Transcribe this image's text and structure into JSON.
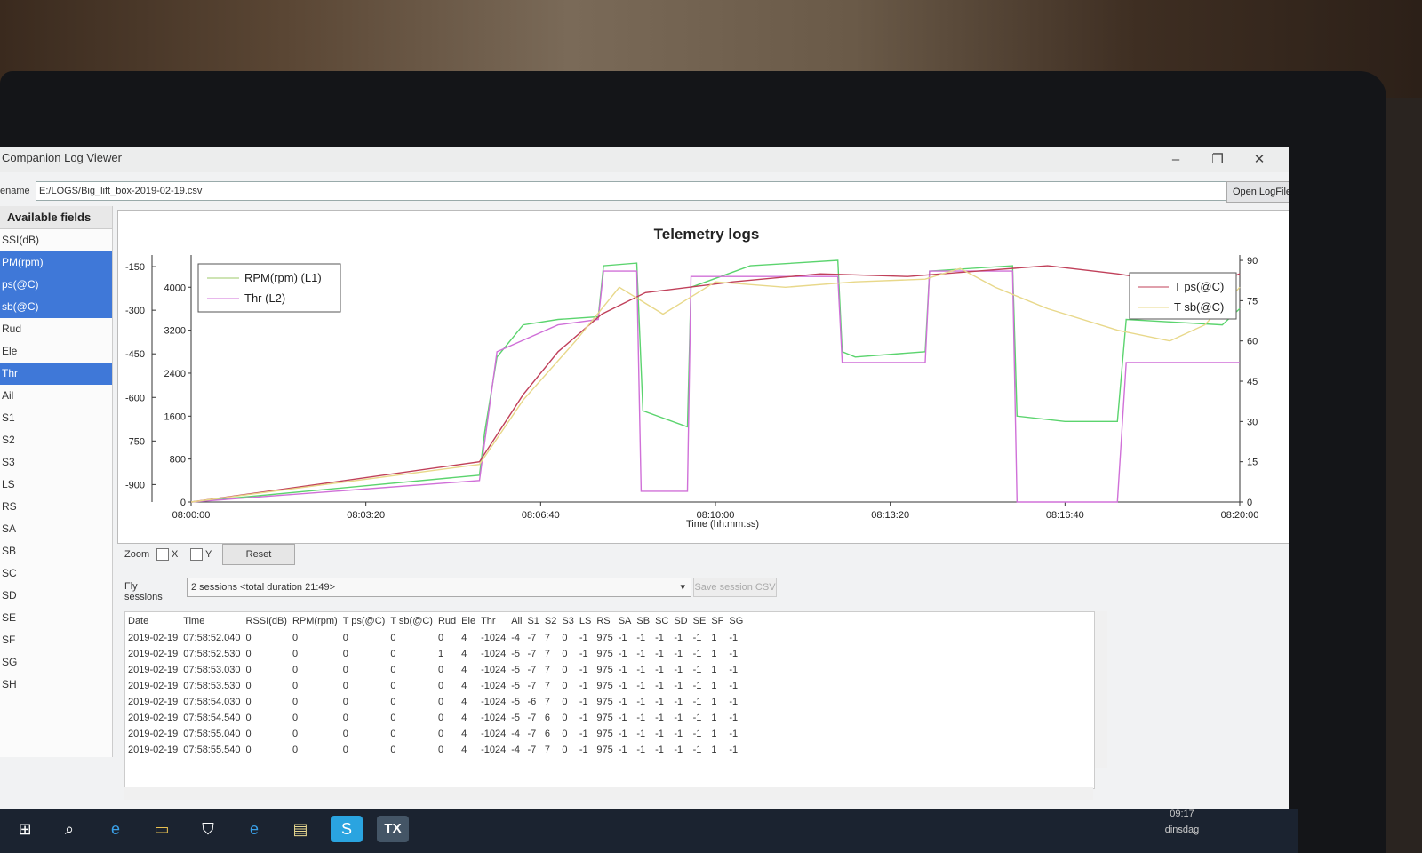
{
  "window": {
    "title": "Companion Log Viewer",
    "controls": [
      "–",
      "❐",
      "✕"
    ]
  },
  "file": {
    "label": "ename",
    "path": "E:/LOGS/Big_lift_box-2019-02-19.csv",
    "open_button": "Open LogFile"
  },
  "fields": {
    "header": "Available fields",
    "items": [
      {
        "label": "SSI(dB)",
        "selected": false
      },
      {
        "label": "PM(rpm)",
        "selected": true
      },
      {
        "label": "ps(@C)",
        "selected": true
      },
      {
        "label": "sb(@C)",
        "selected": true
      },
      {
        "label": "Rud",
        "selected": false
      },
      {
        "label": "Ele",
        "selected": false
      },
      {
        "label": "Thr",
        "selected": true
      },
      {
        "label": "Ail",
        "selected": false
      },
      {
        "label": "S1",
        "selected": false
      },
      {
        "label": "S2",
        "selected": false
      },
      {
        "label": "S3",
        "selected": false
      },
      {
        "label": "LS",
        "selected": false
      },
      {
        "label": "RS",
        "selected": false
      },
      {
        "label": "SA",
        "selected": false
      },
      {
        "label": "SB",
        "selected": false
      },
      {
        "label": "SC",
        "selected": false
      },
      {
        "label": "SD",
        "selected": false
      },
      {
        "label": "SE",
        "selected": false
      },
      {
        "label": "SF",
        "selected": false
      },
      {
        "label": "SG",
        "selected": false
      },
      {
        "label": "SH",
        "selected": false
      }
    ]
  },
  "chart_data": {
    "type": "line",
    "title": "Telemetry logs",
    "xlabel": "Time (hh:mm:ss)",
    "x_ticks": [
      "08:00:00",
      "08:03:20",
      "08:06:40",
      "08:10:00",
      "08:13:20",
      "08:16:40",
      "08:20:00"
    ],
    "xlim": [
      0,
      1200
    ],
    "y_left_outer": {
      "ticks": [
        -150,
        -300,
        -450,
        -600,
        -750,
        -900
      ],
      "range": [
        -960,
        -110
      ]
    },
    "y_left_inner": {
      "ticks": [
        0,
        800,
        1600,
        2400,
        3200,
        4000
      ],
      "range": [
        0,
        4600
      ]
    },
    "y_right": {
      "ticks": [
        0,
        15,
        30,
        45,
        60,
        75,
        90
      ],
      "range": [
        0,
        92
      ]
    },
    "legend_left": [
      "RPM(rpm) (L1)",
      "Thr (L2)"
    ],
    "legend_right": [
      "T ps(@C)",
      "T sb(@C)"
    ],
    "colors": {
      "rpm": "#9ec86a",
      "thr": "#d070d8",
      "tps": "#c0405a",
      "tsb": "#e8d88a",
      "green_trace": "#5bd46e",
      "cyan": "#58c8e8"
    },
    "series": [
      {
        "name": "RPM(rpm) (L1)",
        "color": "#5bd46e",
        "points": [
          [
            0,
            0
          ],
          [
            330,
            500
          ],
          [
            336,
            1300
          ],
          [
            350,
            2700
          ],
          [
            380,
            3300
          ],
          [
            420,
            3400
          ],
          [
            466,
            3450
          ],
          [
            472,
            4400
          ],
          [
            510,
            4450
          ],
          [
            517,
            1700
          ],
          [
            568,
            1400
          ],
          [
            572,
            4000
          ],
          [
            640,
            4400
          ],
          [
            740,
            4500
          ],
          [
            745,
            2800
          ],
          [
            760,
            2700
          ],
          [
            840,
            2800
          ],
          [
            845,
            4300
          ],
          [
            940,
            4400
          ],
          [
            945,
            1600
          ],
          [
            1000,
            1500
          ],
          [
            1060,
            1500
          ],
          [
            1070,
            3400
          ],
          [
            1180,
            3300
          ],
          [
            1200,
            3600
          ]
        ]
      },
      {
        "name": "Thr (L2)",
        "color": "#d070d8",
        "points": [
          [
            0,
            0
          ],
          [
            330,
            400
          ],
          [
            350,
            2800
          ],
          [
            420,
            3300
          ],
          [
            466,
            3400
          ],
          [
            472,
            4300
          ],
          [
            510,
            4300
          ],
          [
            515,
            200
          ],
          [
            568,
            200
          ],
          [
            572,
            4200
          ],
          [
            740,
            4200
          ],
          [
            745,
            2600
          ],
          [
            840,
            2600
          ],
          [
            845,
            4300
          ],
          [
            940,
            4300
          ],
          [
            945,
            0
          ],
          [
            1060,
            0
          ],
          [
            1070,
            2600
          ],
          [
            1200,
            2600
          ]
        ]
      },
      {
        "name": "T ps(@C)",
        "color": "#c0405a",
        "points": [
          [
            0,
            0
          ],
          [
            330,
            15
          ],
          [
            380,
            40
          ],
          [
            420,
            56
          ],
          [
            470,
            70
          ],
          [
            520,
            78
          ],
          [
            620,
            82
          ],
          [
            720,
            85
          ],
          [
            820,
            84
          ],
          [
            900,
            86
          ],
          [
            980,
            88
          ],
          [
            1060,
            85
          ],
          [
            1120,
            82
          ],
          [
            1160,
            80
          ],
          [
            1200,
            85
          ]
        ]
      },
      {
        "name": "T sb(@C)",
        "color": "#e8d88a",
        "points": [
          [
            0,
            0
          ],
          [
            330,
            14
          ],
          [
            380,
            38
          ],
          [
            440,
            60
          ],
          [
            490,
            80
          ],
          [
            540,
            70
          ],
          [
            600,
            82
          ],
          [
            680,
            80
          ],
          [
            760,
            82
          ],
          [
            840,
            83
          ],
          [
            880,
            87
          ],
          [
            920,
            80
          ],
          [
            980,
            72
          ],
          [
            1060,
            64
          ],
          [
            1120,
            60
          ],
          [
            1160,
            66
          ],
          [
            1200,
            80
          ]
        ]
      }
    ]
  },
  "zoom": {
    "label": "Zoom",
    "x_label": "X",
    "y_label": "Y",
    "reset": "Reset"
  },
  "sessions": {
    "label": "Fly sessions",
    "selected": "2 sessions <total duration 21:49>",
    "save_button": "Save session CSV"
  },
  "table": {
    "columns": [
      "Date",
      "Time",
      "RSSI(dB)",
      "RPM(rpm)",
      "T ps(@C)",
      "T sb(@C)",
      "Rud",
      "Ele",
      "Thr",
      "Ail",
      "S1",
      "S2",
      "S3",
      "LS",
      "RS",
      "SA",
      "SB",
      "SC",
      "SD",
      "SE",
      "SF",
      "SG"
    ],
    "rows": [
      [
        "2019-02-19",
        "07:58:52.040",
        "0",
        "0",
        "0",
        "0",
        "0",
        "4",
        "-1024",
        "-4",
        "-7",
        "7",
        "0",
        "-1",
        "975",
        "-1",
        "-1",
        "-1",
        "-1",
        "-1",
        "1",
        "-1"
      ],
      [
        "2019-02-19",
        "07:58:52.530",
        "0",
        "0",
        "0",
        "0",
        "1",
        "4",
        "-1024",
        "-5",
        "-7",
        "7",
        "0",
        "-1",
        "975",
        "-1",
        "-1",
        "-1",
        "-1",
        "-1",
        "1",
        "-1"
      ],
      [
        "2019-02-19",
        "07:58:53.030",
        "0",
        "0",
        "0",
        "0",
        "0",
        "4",
        "-1024",
        "-5",
        "-7",
        "7",
        "0",
        "-1",
        "975",
        "-1",
        "-1",
        "-1",
        "-1",
        "-1",
        "1",
        "-1"
      ],
      [
        "2019-02-19",
        "07:58:53.530",
        "0",
        "0",
        "0",
        "0",
        "0",
        "4",
        "-1024",
        "-5",
        "-7",
        "7",
        "0",
        "-1",
        "975",
        "-1",
        "-1",
        "-1",
        "-1",
        "-1",
        "1",
        "-1"
      ],
      [
        "2019-02-19",
        "07:58:54.030",
        "0",
        "0",
        "0",
        "0",
        "0",
        "4",
        "-1024",
        "-5",
        "-6",
        "7",
        "0",
        "-1",
        "975",
        "-1",
        "-1",
        "-1",
        "-1",
        "-1",
        "1",
        "-1"
      ],
      [
        "2019-02-19",
        "07:58:54.540",
        "0",
        "0",
        "0",
        "0",
        "0",
        "4",
        "-1024",
        "-5",
        "-7",
        "6",
        "0",
        "-1",
        "975",
        "-1",
        "-1",
        "-1",
        "-1",
        "-1",
        "1",
        "-1"
      ],
      [
        "2019-02-19",
        "07:58:55.040",
        "0",
        "0",
        "0",
        "0",
        "0",
        "4",
        "-1024",
        "-4",
        "-7",
        "6",
        "0",
        "-1",
        "975",
        "-1",
        "-1",
        "-1",
        "-1",
        "-1",
        "1",
        "-1"
      ],
      [
        "2019-02-19",
        "07:58:55.540",
        "0",
        "0",
        "0",
        "0",
        "0",
        "4",
        "-1024",
        "-4",
        "-7",
        "7",
        "0",
        "-1",
        "975",
        "-1",
        "-1",
        "-1",
        "-1",
        "-1",
        "1",
        "-1"
      ]
    ]
  },
  "taskbar": {
    "icons": [
      "windows-icon",
      "search-icon",
      "edge-icon",
      "explorer-icon",
      "store-icon",
      "ie-icon",
      "files-icon",
      "skype-icon",
      "opentx-icon"
    ],
    "opentx_label": "TX",
    "time": "09:17",
    "day": "dinsdag"
  }
}
